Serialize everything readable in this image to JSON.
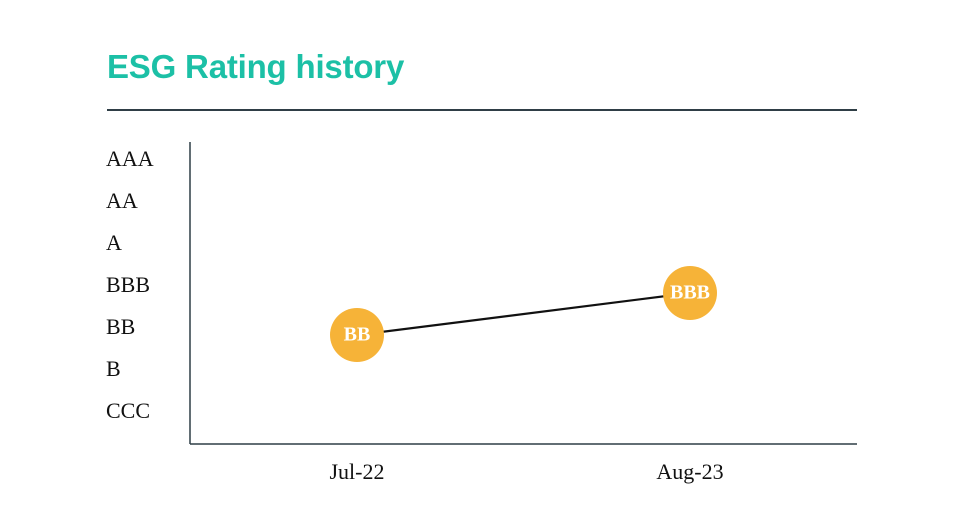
{
  "chart_data": {
    "type": "line",
    "title": "ESG Rating history",
    "y_categories": [
      "CCC",
      "B",
      "BB",
      "BBB",
      "A",
      "AA",
      "AAA"
    ],
    "x_categories": [
      "Jul-22",
      "Aug-23"
    ],
    "points": [
      {
        "x": "Jul-22",
        "y": "BB"
      },
      {
        "x": "Aug-23",
        "y": "BBB"
      }
    ],
    "marker_color": "#f6b338",
    "line_color": "#111111",
    "title_color": "#1cc0a6",
    "rule_color": "#2f3e46",
    "grid": false,
    "legend": "none"
  }
}
